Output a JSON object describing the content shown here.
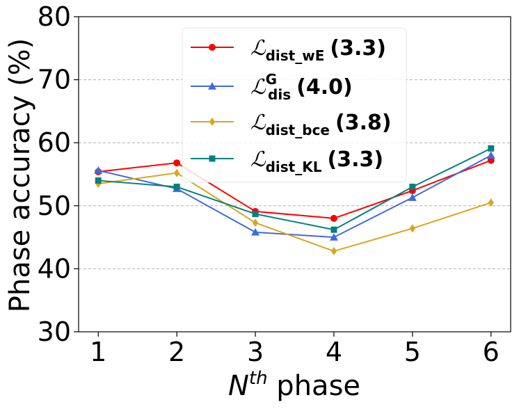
{
  "chart_data": {
    "type": "line",
    "title": "",
    "xlabel": {
      "base": "N",
      "sup": "th",
      "rest": " phase"
    },
    "ylabel": "Phase accuracy (%)",
    "x": [
      1,
      2,
      3,
      4,
      5,
      6
    ],
    "x_tick_labels": [
      "1",
      "2",
      "3",
      "4",
      "5",
      "6"
    ],
    "ylim": [
      30,
      80
    ],
    "y_ticks": [
      30,
      40,
      50,
      60,
      70,
      80
    ],
    "y_tick_labels": [
      "30",
      "40",
      "50",
      "60",
      "70",
      "80"
    ],
    "grid": "horizontal dashed",
    "legend_position": "upper-center",
    "series": [
      {
        "name": "L_dist_wE (3.3)",
        "script": "ℒ",
        "sub": "dist_wE",
        "sup": "",
        "score": "(3.3)",
        "color": "#ff0000",
        "marker": "circle",
        "values": [
          55.4,
          56.8,
          49.1,
          48.0,
          52.4,
          57.2
        ]
      },
      {
        "name": "L_dis^G (4.0)",
        "script": "ℒ",
        "sub": "dis",
        "sup": "G",
        "score": "(4.0)",
        "color": "#4169e1",
        "marker": "triangle",
        "values": [
          55.6,
          52.7,
          45.8,
          45.0,
          51.3,
          58.0
        ]
      },
      {
        "name": "L_dist_bce (3.8)",
        "script": "ℒ",
        "sub": "dist_bce",
        "sup": "",
        "score": "(3.8)",
        "color": "#daa520",
        "marker": "diamond",
        "values": [
          53.5,
          55.2,
          47.3,
          42.8,
          46.4,
          50.5
        ]
      },
      {
        "name": "L_dist_KL (3.3)",
        "script": "ℒ",
        "sub": "dist_KL",
        "sup": "",
        "score": "(3.3)",
        "color": "#008080",
        "marker": "square",
        "values": [
          54.0,
          53.0,
          48.7,
          46.2,
          53.0,
          59.1
        ]
      }
    ]
  }
}
